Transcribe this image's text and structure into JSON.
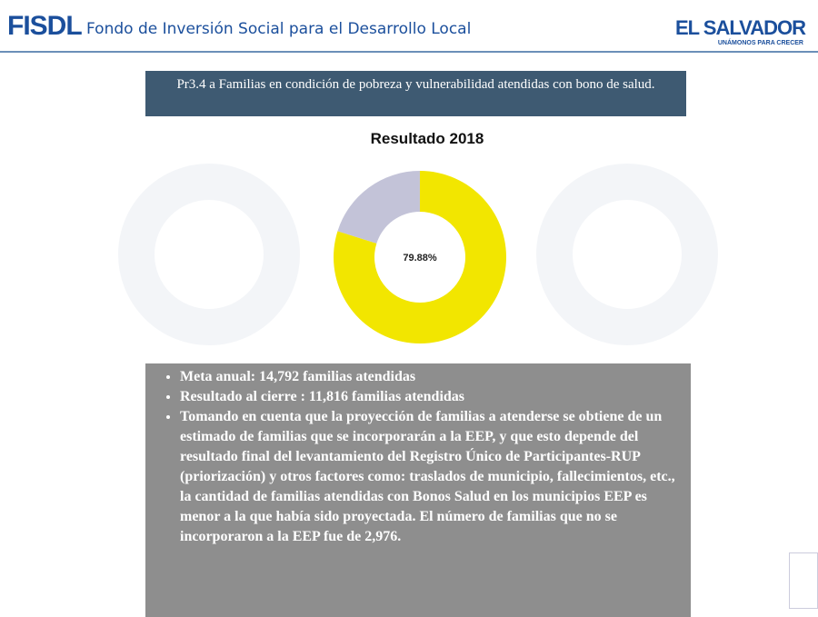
{
  "header": {
    "brand": "FISDL",
    "subtitle": "Fondo de Inversión Social para el Desarrollo Local",
    "logo": "EL SALVADOR",
    "logo_tagline": "UNÁMONOS PARA CRECER"
  },
  "chart_data": {
    "type": "donut",
    "heading": "Pr3.4 a Familias en condición de pobreza y vulnerabilidad atendidas con bono de salud.",
    "title": "Resultado 2018",
    "values": [
      79.88,
      20.12
    ],
    "value_labels": [
      "79.88%",
      null
    ],
    "colors": [
      "#f2e600",
      "#c3c3d8"
    ]
  },
  "notes": [
    "Meta anual: 14,792 familias atendidas",
    "Resultado al cierre : 11,816 familias atendidas",
    "Tomando en cuenta que la proyección de familias a atenderse se obtiene de un estimado de familias que se incorporarán a la EEP, y que esto depende del resultado final del levantamiento del Registro Único de Participantes-RUP (priorización) y otros factores como: traslados de municipio, fallecimientos, etc., la cantidad de familias atendidas con Bonos Salud en los municipios EEP es menor a la que había sido proyectada. El número de familias que no se incorporaron a la EEP fue de 2,976."
  ]
}
